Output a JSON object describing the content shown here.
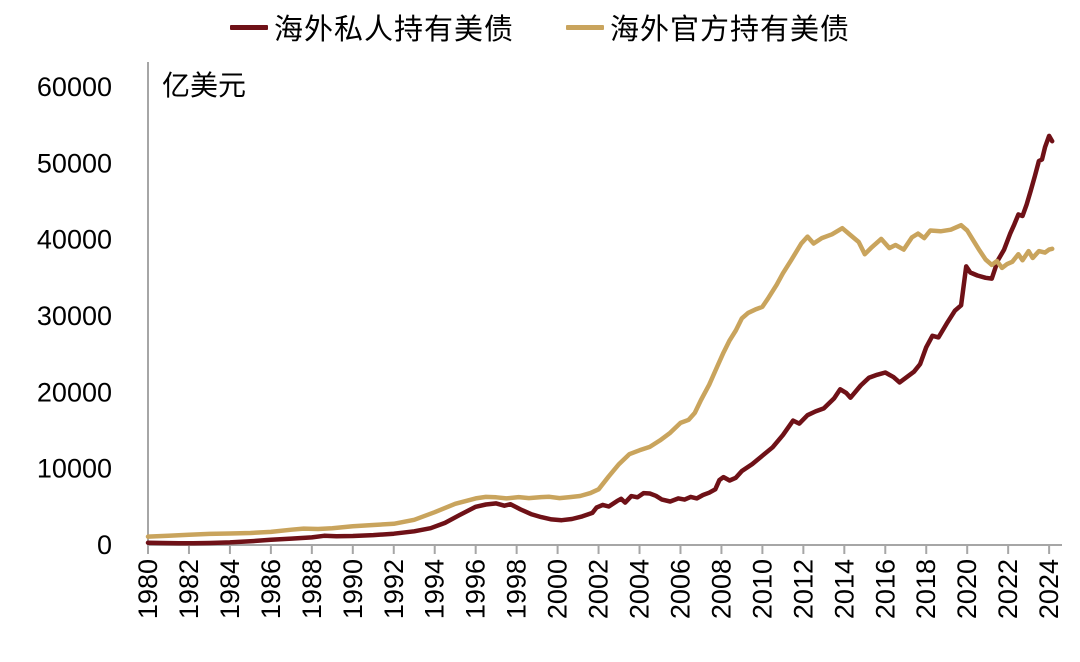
{
  "background": "#ffffff",
  "text_color": "#000000",
  "axis_color": "#a6a6a6",
  "chart_data": {
    "type": "line",
    "title": "",
    "unit_label": "亿美元",
    "xlabel": "",
    "ylabel": "亿美元",
    "grid": false,
    "legend_position": "top-center",
    "xlim": [
      1979.7,
      2025.6
    ],
    "ylim": [
      0,
      60000
    ],
    "x_ticks": [
      1980,
      1982,
      1984,
      1986,
      1988,
      1990,
      1992,
      1994,
      1996,
      1998,
      2000,
      2002,
      2004,
      2006,
      2008,
      2010,
      2012,
      2014,
      2016,
      2018,
      2020,
      2022,
      2024
    ],
    "y_ticks": [
      0,
      10000,
      20000,
      30000,
      40000,
      50000,
      60000
    ],
    "series": [
      {
        "name": "海外私人持有美债",
        "color": "#6f1117",
        "points": [
          [
            1980.0,
            300
          ],
          [
            1980.7,
            260
          ],
          [
            1981.5,
            230
          ],
          [
            1982.2,
            220
          ],
          [
            1983.0,
            260
          ],
          [
            1984.0,
            340
          ],
          [
            1985.0,
            480
          ],
          [
            1986.0,
            680
          ],
          [
            1987.0,
            840
          ],
          [
            1988.0,
            1000
          ],
          [
            1988.6,
            1200
          ],
          [
            1989.2,
            1150
          ],
          [
            1990.0,
            1180
          ],
          [
            1991.0,
            1300
          ],
          [
            1992.0,
            1480
          ],
          [
            1993.0,
            1800
          ],
          [
            1993.8,
            2200
          ],
          [
            1994.5,
            2900
          ],
          [
            1995.2,
            3900
          ],
          [
            1996.0,
            5000
          ],
          [
            1996.5,
            5300
          ],
          [
            1997.0,
            5450
          ],
          [
            1997.4,
            5150
          ],
          [
            1997.7,
            5350
          ],
          [
            1998.2,
            4650
          ],
          [
            1998.7,
            4050
          ],
          [
            1999.2,
            3650
          ],
          [
            1999.7,
            3350
          ],
          [
            2000.2,
            3250
          ],
          [
            2000.7,
            3400
          ],
          [
            2001.2,
            3750
          ],
          [
            2001.7,
            4200
          ],
          [
            2001.9,
            4900
          ],
          [
            2002.2,
            5250
          ],
          [
            2002.5,
            5050
          ],
          [
            2002.9,
            5750
          ],
          [
            2003.1,
            6050
          ],
          [
            2003.3,
            5550
          ],
          [
            2003.6,
            6400
          ],
          [
            2003.9,
            6250
          ],
          [
            2004.2,
            6800
          ],
          [
            2004.5,
            6750
          ],
          [
            2004.8,
            6450
          ],
          [
            2005.1,
            5950
          ],
          [
            2005.5,
            5700
          ],
          [
            2005.9,
            6100
          ],
          [
            2006.2,
            5950
          ],
          [
            2006.5,
            6300
          ],
          [
            2006.8,
            6100
          ],
          [
            2007.1,
            6550
          ],
          [
            2007.4,
            6850
          ],
          [
            2007.7,
            7300
          ],
          [
            2007.9,
            8500
          ],
          [
            2008.1,
            8900
          ],
          [
            2008.4,
            8450
          ],
          [
            2008.7,
            8800
          ],
          [
            2009.0,
            9700
          ],
          [
            2009.5,
            10600
          ],
          [
            2010.0,
            11700
          ],
          [
            2010.5,
            12800
          ],
          [
            2011.0,
            14400
          ],
          [
            2011.5,
            16300
          ],
          [
            2011.8,
            15900
          ],
          [
            2012.2,
            17000
          ],
          [
            2012.6,
            17500
          ],
          [
            2013.0,
            17900
          ],
          [
            2013.5,
            19200
          ],
          [
            2013.8,
            20400
          ],
          [
            2014.1,
            19900
          ],
          [
            2014.3,
            19300
          ],
          [
            2014.8,
            20900
          ],
          [
            2015.2,
            21900
          ],
          [
            2015.6,
            22300
          ],
          [
            2016.0,
            22600
          ],
          [
            2016.4,
            22000
          ],
          [
            2016.7,
            21300
          ],
          [
            2017.0,
            21900
          ],
          [
            2017.4,
            22700
          ],
          [
            2017.7,
            23700
          ],
          [
            2018.0,
            25900
          ],
          [
            2018.3,
            27400
          ],
          [
            2018.6,
            27200
          ],
          [
            2019.0,
            29000
          ],
          [
            2019.4,
            30700
          ],
          [
            2019.7,
            31400
          ],
          [
            2019.95,
            36500
          ],
          [
            2020.15,
            35700
          ],
          [
            2020.5,
            35300
          ],
          [
            2020.9,
            35000
          ],
          [
            2021.2,
            34900
          ],
          [
            2021.5,
            37300
          ],
          [
            2021.8,
            38700
          ],
          [
            2022.1,
            40800
          ],
          [
            2022.3,
            42000
          ],
          [
            2022.5,
            43300
          ],
          [
            2022.7,
            43100
          ],
          [
            2022.9,
            44600
          ],
          [
            2023.1,
            46400
          ],
          [
            2023.3,
            48300
          ],
          [
            2023.5,
            50300
          ],
          [
            2023.65,
            50500
          ],
          [
            2023.8,
            52100
          ],
          [
            2024.0,
            53600
          ],
          [
            2024.15,
            52900
          ]
        ]
      },
      {
        "name": "海外官方持有美债",
        "color": "#c9a45d",
        "points": [
          [
            1980.0,
            1100
          ],
          [
            1981.0,
            1200
          ],
          [
            1982.0,
            1350
          ],
          [
            1983.0,
            1450
          ],
          [
            1984.0,
            1500
          ],
          [
            1985.0,
            1570
          ],
          [
            1986.0,
            1720
          ],
          [
            1987.0,
            2000
          ],
          [
            1987.6,
            2150
          ],
          [
            1988.3,
            2100
          ],
          [
            1989.0,
            2200
          ],
          [
            1990.0,
            2450
          ],
          [
            1991.0,
            2620
          ],
          [
            1992.0,
            2780
          ],
          [
            1993.0,
            3300
          ],
          [
            1994.0,
            4300
          ],
          [
            1995.0,
            5400
          ],
          [
            1996.0,
            6100
          ],
          [
            1996.5,
            6300
          ],
          [
            1997.0,
            6250
          ],
          [
            1997.5,
            6100
          ],
          [
            1998.1,
            6280
          ],
          [
            1998.6,
            6150
          ],
          [
            1999.2,
            6270
          ],
          [
            1999.6,
            6320
          ],
          [
            2000.1,
            6150
          ],
          [
            2000.6,
            6280
          ],
          [
            2001.1,
            6420
          ],
          [
            2001.6,
            6800
          ],
          [
            2002.0,
            7300
          ],
          [
            2002.5,
            9000
          ],
          [
            2003.0,
            10600
          ],
          [
            2003.5,
            11900
          ],
          [
            2004.0,
            12400
          ],
          [
            2004.5,
            12850
          ],
          [
            2005.0,
            13700
          ],
          [
            2005.5,
            14700
          ],
          [
            2006.0,
            16000
          ],
          [
            2006.4,
            16400
          ],
          [
            2006.7,
            17300
          ],
          [
            2007.0,
            19000
          ],
          [
            2007.4,
            21000
          ],
          [
            2007.8,
            23400
          ],
          [
            2008.1,
            25200
          ],
          [
            2008.4,
            26800
          ],
          [
            2008.7,
            28100
          ],
          [
            2009.0,
            29700
          ],
          [
            2009.3,
            30400
          ],
          [
            2009.7,
            30900
          ],
          [
            2010.0,
            31200
          ],
          [
            2010.3,
            32400
          ],
          [
            2010.7,
            34100
          ],
          [
            2011.0,
            35600
          ],
          [
            2011.4,
            37300
          ],
          [
            2011.9,
            39500
          ],
          [
            2012.2,
            40400
          ],
          [
            2012.5,
            39500
          ],
          [
            2012.9,
            40200
          ],
          [
            2013.4,
            40700
          ],
          [
            2013.9,
            41500
          ],
          [
            2014.3,
            40600
          ],
          [
            2014.7,
            39700
          ],
          [
            2015.0,
            38100
          ],
          [
            2015.3,
            38900
          ],
          [
            2015.8,
            40100
          ],
          [
            2016.2,
            38900
          ],
          [
            2016.5,
            39300
          ],
          [
            2016.9,
            38700
          ],
          [
            2017.3,
            40300
          ],
          [
            2017.6,
            40800
          ],
          [
            2017.9,
            40200
          ],
          [
            2018.2,
            41200
          ],
          [
            2018.7,
            41100
          ],
          [
            2019.2,
            41300
          ],
          [
            2019.7,
            41900
          ],
          [
            2020.0,
            41200
          ],
          [
            2020.3,
            39900
          ],
          [
            2020.6,
            38600
          ],
          [
            2020.9,
            37400
          ],
          [
            2021.2,
            36700
          ],
          [
            2021.45,
            37200
          ],
          [
            2021.7,
            36300
          ],
          [
            2021.95,
            36800
          ],
          [
            2022.2,
            37100
          ],
          [
            2022.5,
            38100
          ],
          [
            2022.7,
            37300
          ],
          [
            2023.0,
            38500
          ],
          [
            2023.2,
            37600
          ],
          [
            2023.5,
            38500
          ],
          [
            2023.8,
            38300
          ],
          [
            2024.0,
            38700
          ],
          [
            2024.15,
            38800
          ]
        ]
      }
    ]
  }
}
